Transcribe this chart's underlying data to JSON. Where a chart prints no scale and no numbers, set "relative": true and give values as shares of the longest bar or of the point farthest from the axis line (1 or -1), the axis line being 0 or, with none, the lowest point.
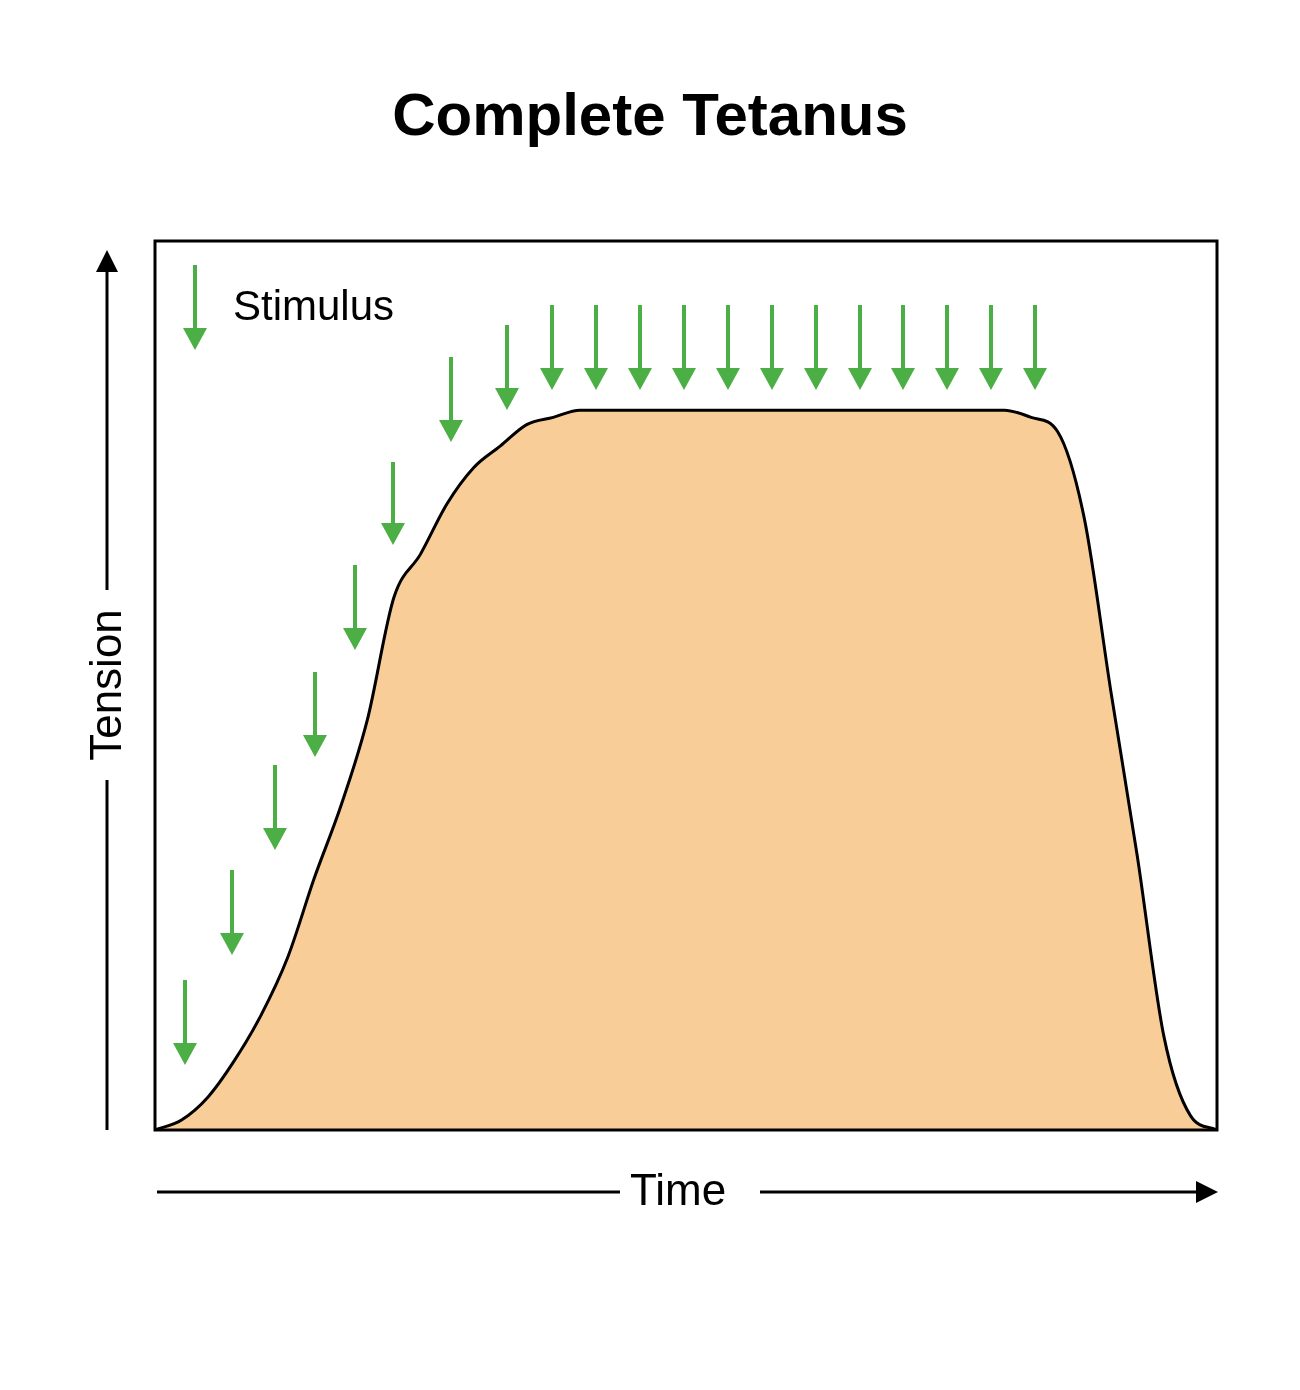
{
  "chart_data": {
    "type": "area",
    "title": "Complete Tetanus",
    "xlabel": "Time",
    "ylabel": "Tension",
    "annotations": [
      "Stimulus"
    ],
    "categories": [
      null,
      null,
      null,
      null,
      null,
      null,
      null,
      null,
      null,
      null,
      null,
      null,
      null,
      null,
      null,
      null,
      null,
      null,
      null,
      null,
      null,
      null,
      null,
      null,
      null,
      null,
      null,
      null,
      null,
      null,
      null,
      null,
      null,
      null,
      null,
      null,
      null,
      null,
      null,
      null,
      null
    ],
    "values": [
      0,
      0.014,
      0.046,
      0.097,
      0.16,
      0.24,
      0.35,
      0.45,
      0.57,
      0.74,
      0.8,
      0.87,
      0.92,
      0.95,
      0.98,
      0.99,
      1,
      1,
      1,
      1,
      1,
      1,
      1,
      1,
      1,
      1,
      1,
      1,
      1,
      1,
      1,
      1,
      1,
      0.99,
      0.97,
      0.85,
      0.61,
      0.38,
      0.13,
      0.02,
      0
    ],
    "color": "#f9cd98",
    "relative": true,
    "legend": false
  }
}
